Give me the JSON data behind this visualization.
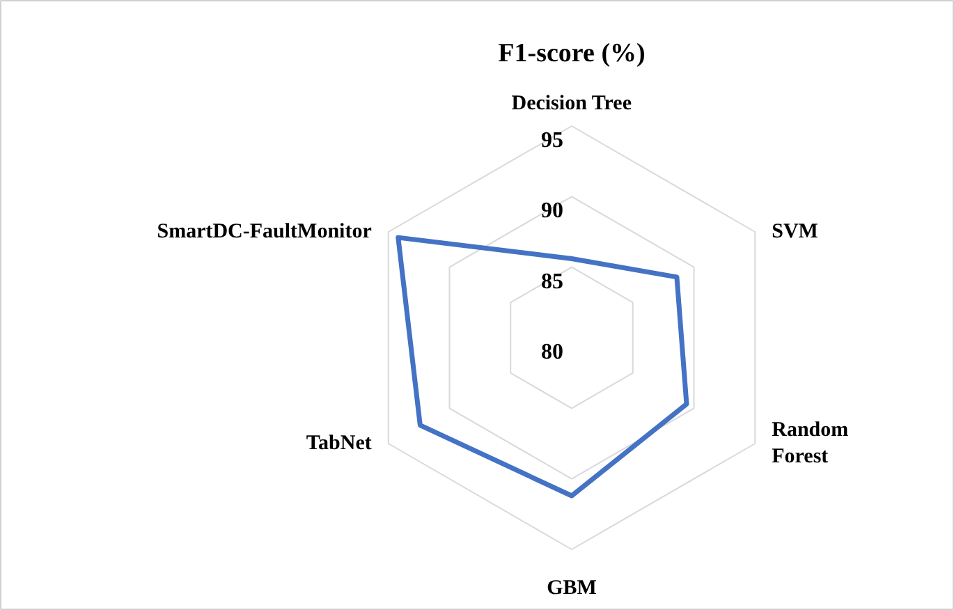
{
  "chart_data": {
    "type": "radar",
    "title": "F1-score (%)",
    "categories": [
      "Decision Tree",
      "SVM",
      "Random\nForest",
      "GBM",
      "TabNet",
      "SmartDC-FaultMonitor"
    ],
    "series": [
      {
        "color": "#4472c4",
        "values": [
          85.6,
          88.6,
          89.4,
          91.2,
          92.4,
          94.2
        ]
      }
    ],
    "ylim": [
      80,
      95
    ],
    "yticks": [
      80,
      85,
      90,
      95
    ],
    "grid": true
  }
}
